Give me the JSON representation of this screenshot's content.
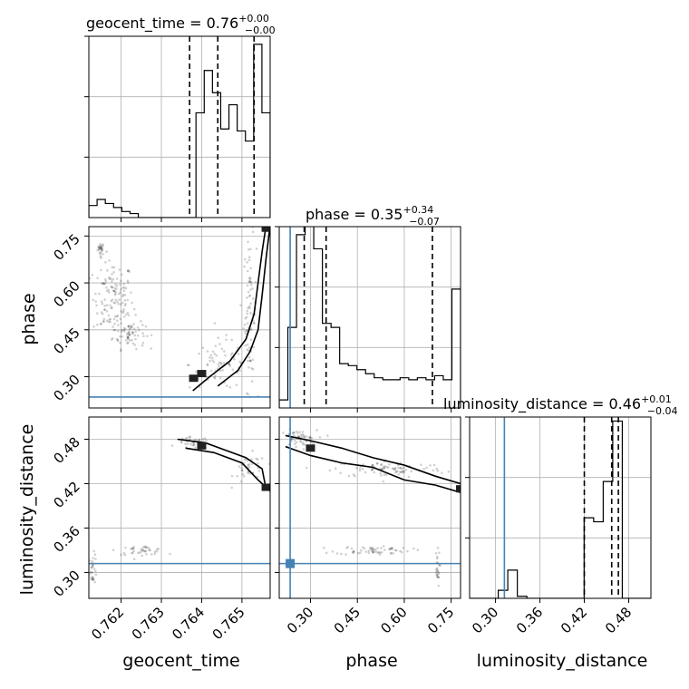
{
  "chart_data": {
    "type": "corner",
    "parameters": [
      {
        "name": "geocent_time",
        "title": "geocent_time = 0.76",
        "title_plus": "+0.00",
        "title_minus": "−0.00",
        "range": [
          0.7612,
          0.7657
        ],
        "ticks": [
          0.762,
          0.763,
          0.764,
          0.765
        ],
        "tick_labels": [
          "0.762",
          "0.763",
          "0.764",
          "0.765"
        ],
        "quantiles": [
          0.7637,
          0.7644,
          0.7653
        ],
        "truth": null,
        "hist": [
          0.06,
          0.09,
          0.07,
          0.05,
          0.03,
          0.02,
          0.0,
          0.0,
          0.0,
          0.0,
          0.0,
          0.0,
          0.0,
          0.52,
          0.73,
          0.62,
          0.44,
          0.56,
          0.43,
          0.38,
          0.86,
          0.52
        ]
      },
      {
        "name": "phase",
        "title": "phase = 0.35",
        "title_plus": "+0.34",
        "title_minus": "−0.07",
        "range": [
          0.2,
          0.78
        ],
        "ticks": [
          0.3,
          0.45,
          0.6,
          0.75
        ],
        "tick_labels": [
          "0.30",
          "0.45",
          "0.60",
          "0.75"
        ],
        "quantiles": [
          0.28,
          0.35,
          0.69
        ],
        "truth": 0.235,
        "hist": [
          0.04,
          0.4,
          0.86,
          0.92,
          0.79,
          0.42,
          0.4,
          0.22,
          0.21,
          0.19,
          0.17,
          0.15,
          0.14,
          0.14,
          0.15,
          0.14,
          0.15,
          0.14,
          0.16,
          0.14,
          0.59
        ]
      },
      {
        "name": "luminosity_distance",
        "title": "luminosity_distance = 0.46",
        "title_plus": "+0.01",
        "title_minus": "−0.04",
        "range": [
          0.265,
          0.51
        ],
        "ticks": [
          0.3,
          0.36,
          0.42,
          0.48
        ],
        "tick_labels": [
          "0.30",
          "0.36",
          "0.42",
          "0.48"
        ],
        "quantiles": [
          0.42,
          0.457,
          0.466
        ],
        "truth": 0.312,
        "hist": [
          0.0,
          0.0,
          0.0,
          0.04,
          0.14,
          0.01,
          0.0,
          0.0,
          0.0,
          0.0,
          0.0,
          0.0,
          0.4,
          0.38,
          0.58,
          0.88,
          0.0,
          0.0,
          0.0
        ]
      }
    ],
    "hist_yticks": [
      0.3,
      0.6,
      0.9
    ],
    "truth_color": "#4682b4",
    "contour_color": "#000000",
    "scatter_clusters": {
      "geocent_time-phase": [
        {
          "x": 0.7615,
          "y": 0.71,
          "sx": 4e-05,
          "sy": 0.01,
          "n": 25
        },
        {
          "x": 0.7618,
          "y": 0.55,
          "sx": 0.00025,
          "sy": 0.06,
          "n": 130
        },
        {
          "x": 0.7622,
          "y": 0.44,
          "sx": 0.0002,
          "sy": 0.025,
          "n": 70
        },
        {
          "x": 0.7652,
          "y": 0.5,
          "sx": 8e-05,
          "sy": 0.12,
          "n": 80
        },
        {
          "x": 0.7645,
          "y": 0.34,
          "sx": 0.0004,
          "sy": 0.04,
          "n": 80
        }
      ],
      "geocent_time-luminosity_distance": [
        {
          "x": 0.7638,
          "y": 0.475,
          "sx": 0.0002,
          "sy": 0.004,
          "n": 40
        },
        {
          "x": 0.7652,
          "y": 0.44,
          "sx": 0.0002,
          "sy": 0.01,
          "n": 40
        },
        {
          "x": 0.7613,
          "y": 0.305,
          "sx": 5e-05,
          "sy": 0.01,
          "n": 30
        },
        {
          "x": 0.7625,
          "y": 0.33,
          "sx": 0.0003,
          "sy": 0.003,
          "n": 40
        }
      ],
      "phase-luminosity_distance": [
        {
          "x": 0.26,
          "y": 0.48,
          "sx": 0.03,
          "sy": 0.006,
          "n": 60
        },
        {
          "x": 0.55,
          "y": 0.44,
          "sx": 0.09,
          "sy": 0.006,
          "n": 90
        },
        {
          "x": 0.5,
          "y": 0.33,
          "sx": 0.06,
          "sy": 0.003,
          "n": 60
        },
        {
          "x": 0.705,
          "y": 0.305,
          "sx": 0.004,
          "sy": 0.012,
          "n": 25
        }
      ]
    },
    "contours": {
      "geocent_time-phase": [
        [
          [
            0.76378,
            0.255
          ],
          [
            0.7642,
            0.3
          ],
          [
            0.7647,
            0.35
          ],
          [
            0.7651,
            0.42
          ],
          [
            0.7653,
            0.5
          ],
          [
            0.7654,
            0.6
          ],
          [
            0.7655,
            0.7
          ],
          [
            0.7656,
            0.785
          ]
        ],
        [
          [
            0.7644,
            0.27
          ],
          [
            0.7649,
            0.32
          ],
          [
            0.7652,
            0.38
          ],
          [
            0.7654,
            0.45
          ],
          [
            0.7655,
            0.56
          ],
          [
            0.7656,
            0.68
          ],
          [
            0.7657,
            0.785
          ]
        ]
      ],
      "geocent_time-luminosity_distance": [
        [
          [
            0.7634,
            0.48
          ],
          [
            0.7641,
            0.475
          ],
          [
            0.7646,
            0.465
          ],
          [
            0.7651,
            0.455
          ],
          [
            0.7655,
            0.44
          ],
          [
            0.7656,
            0.412
          ]
        ],
        [
          [
            0.7636,
            0.468
          ],
          [
            0.7643,
            0.462
          ],
          [
            0.765,
            0.448
          ],
          [
            0.7654,
            0.425
          ],
          [
            0.7657,
            0.41
          ]
        ]
      ],
      "phase-luminosity_distance": [
        [
          [
            0.22,
            0.485
          ],
          [
            0.3,
            0.478
          ],
          [
            0.4,
            0.468
          ],
          [
            0.5,
            0.455
          ],
          [
            0.6,
            0.445
          ],
          [
            0.7,
            0.43
          ],
          [
            0.78,
            0.42
          ]
        ],
        [
          [
            0.22,
            0.47
          ],
          [
            0.3,
            0.458
          ],
          [
            0.4,
            0.448
          ],
          [
            0.5,
            0.442
          ],
          [
            0.6,
            0.425
          ],
          [
            0.7,
            0.418
          ],
          [
            0.78,
            0.408
          ]
        ]
      ]
    },
    "peaks": {
      "geocent_time-phase": [
        [
          0.764,
          0.31
        ],
        [
          0.7638,
          0.295
        ],
        [
          0.7656,
          0.775
        ]
      ],
      "geocent_time-luminosity_distance": [
        [
          0.764,
          0.471
        ],
        [
          0.7656,
          0.415
        ]
      ],
      "phase-luminosity_distance": [
        [
          0.3,
          0.468
        ],
        [
          0.78,
          0.413
        ]
      ]
    },
    "truth_point": {
      "pair": "phase-luminosity_distance",
      "x": 0.235,
      "y": 0.312
    }
  }
}
